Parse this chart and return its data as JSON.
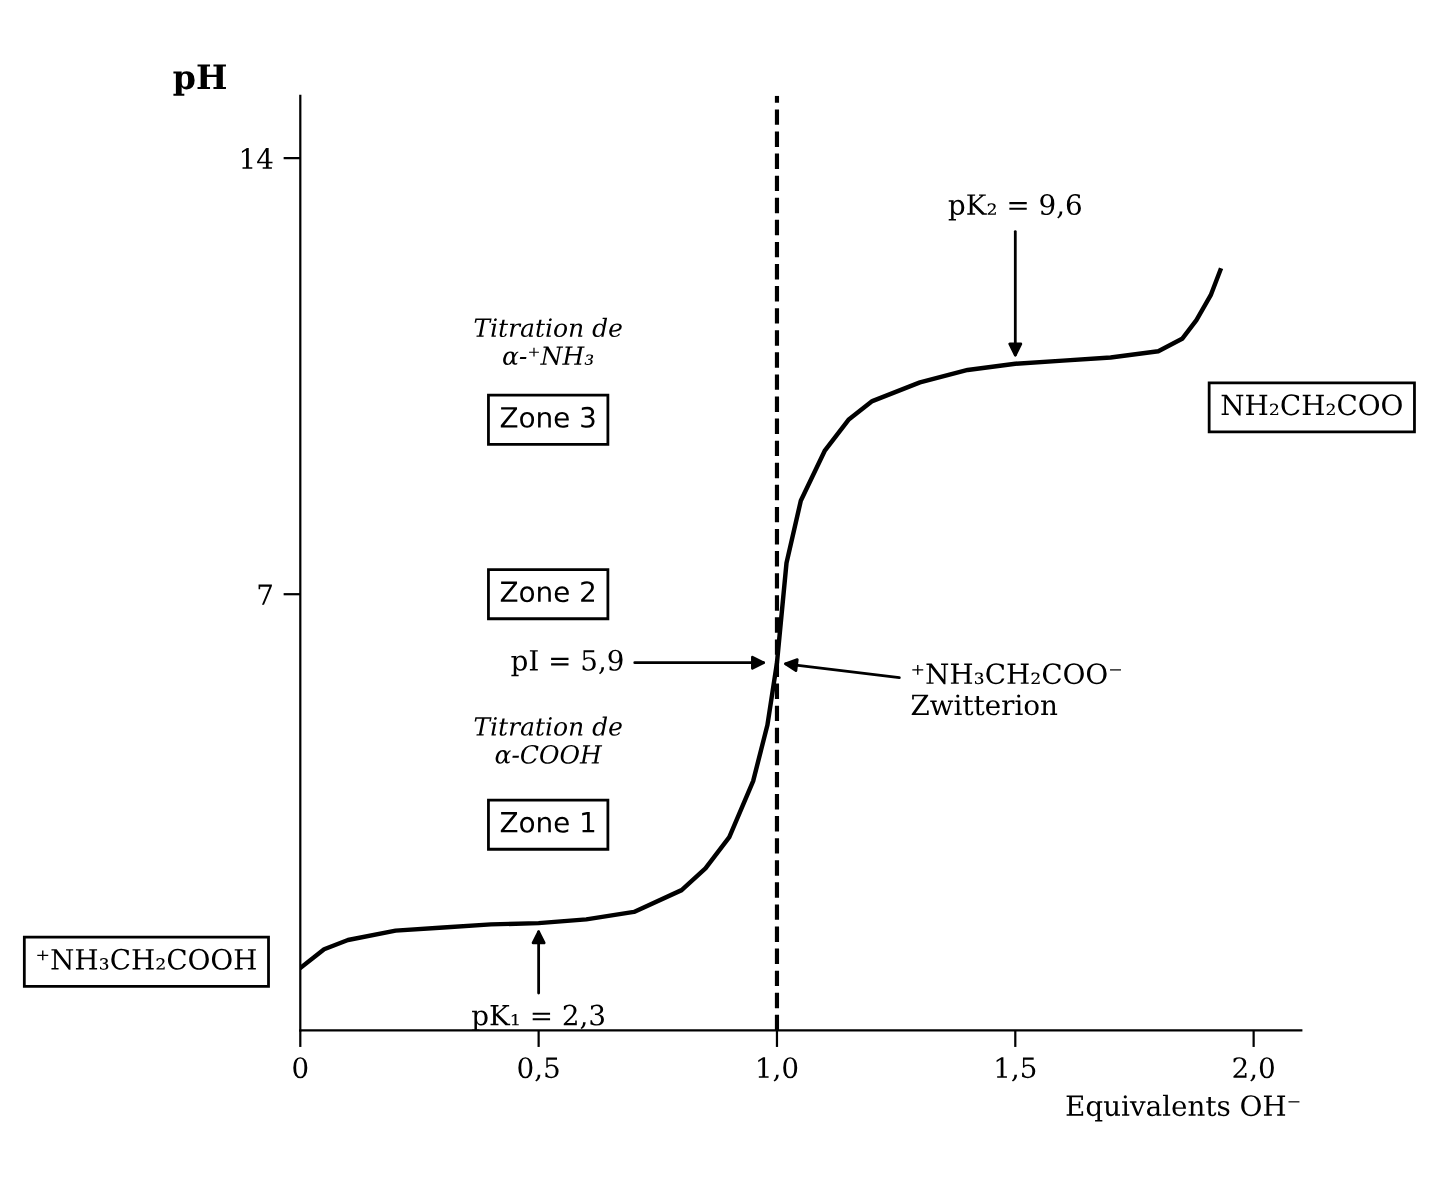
{
  "chart_data": {
    "type": "line",
    "xlabel": "Equivalents OH⁻",
    "ylabel": "pH",
    "x": [
      0,
      0.05,
      0.1,
      0.2,
      0.3,
      0.4,
      0.5,
      0.6,
      0.7,
      0.8,
      0.85,
      0.9,
      0.95,
      0.98,
      1.0,
      1.02,
      1.05,
      1.1,
      1.15,
      1.2,
      1.3,
      1.4,
      1.5,
      1.6,
      1.7,
      1.8,
      1.85,
      1.88,
      1.91,
      1.93
    ],
    "series": [
      {
        "color": "#000000",
        "values": [
          1.0,
          1.3,
          1.45,
          1.6,
          1.65,
          1.7,
          1.72,
          1.78,
          1.9,
          2.25,
          2.6,
          3.1,
          4.0,
          4.9,
          5.9,
          7.5,
          8.5,
          9.3,
          9.8,
          10.1,
          10.4,
          10.6,
          10.7,
          10.75,
          10.8,
          10.9,
          11.1,
          11.4,
          11.8,
          12.2
        ]
      }
    ],
    "xlim": [
      0,
      2.1
    ],
    "ylim": [
      0,
      15
    ],
    "xticks": [
      0,
      {
        "value": 0.5,
        "label": "0,5"
      },
      {
        "value": 1.0,
        "label": "1,0"
      },
      {
        "value": 1.5,
        "label": "1,5"
      },
      {
        "value": 2.0,
        "label": "2,0"
      }
    ],
    "yticks": [
      7,
      14
    ],
    "ref_lines": [
      {
        "axis": "x",
        "value": 1.0,
        "line_style": "dashed",
        "color": "#000000"
      }
    ],
    "annotations": [
      {
        "text": "pK₁ = 2,3",
        "x": 0.5,
        "y": 1.72
      },
      {
        "text": "pK₂ = 9,6",
        "x": 1.5,
        "y": 10.7
      },
      "pI = 5,9",
      {
        "text": "⁺NH₃CH₂COO⁻\nZwitterion",
        "x": 1.0,
        "y": 5.9
      },
      "Titration de\nα-⁺NH₃",
      "Zone 3",
      "Zone 2",
      "Titration de\nα-COOH",
      "Zone 1",
      "⁺NH₃CH₂COOH",
      "NH₂CH₂COO"
    ],
    "grid": false,
    "legend": false,
    "line_style": "solid",
    "marker": "none"
  }
}
